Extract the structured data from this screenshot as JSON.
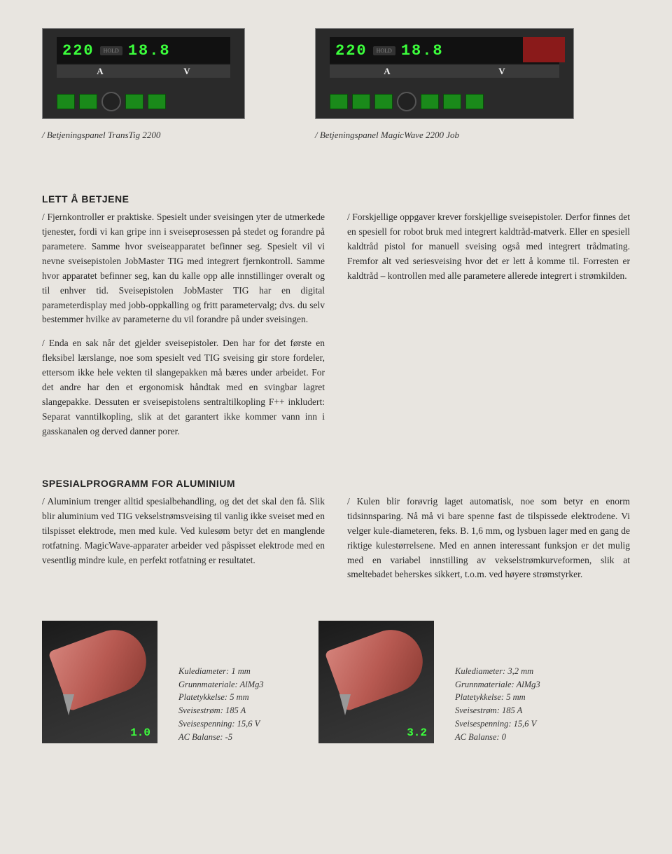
{
  "panels": {
    "left_display_a": "220",
    "left_display_v": "18.8",
    "right_display_a": "220",
    "right_display_v": "18.8",
    "hold_label": "HOLD",
    "a_label": "A",
    "v_label": "V",
    "caption_left": "/ Betjeningspanel TransTig 2200",
    "caption_right": "/ Betjeningspanel MagicWave 2200 Job"
  },
  "section1": {
    "heading": "LETT Å BETJENE",
    "left_p1": "/ Fjernkontroller er praktiske. Spesielt under sveisingen yter de utmerkede tjenester, fordi vi kan gripe inn i sveiseprosessen på stedet og forandre på parametere. Samme hvor sveiseapparatet befinner seg. Spesielt vil vi nevne sveisepistolen JobMaster TIG med integrert fjernkontroll. Samme hvor apparatet befinner seg, kan du kalle opp alle innstillinger overalt og til enhver tid. Sveisepistolen JobMaster TIG har en digital parameterdisplay med jobb-oppkalling og fritt parametervalg; dvs. du selv bestemmer hvilke av parameterne du vil forandre på under sveisingen.",
    "left_p2": "/ Enda en sak når det gjelder sveisepistoler. Den har for det første en fleksibel lærslange, noe som spesielt ved TIG sveising gir store fordeler, ettersom ikke hele vekten til slangepakken må bæres under arbeidet. For det andre har den et ergonomisk håndtak med en svingbar lagret slangepakke. Dessuten er sveisepistolens sentraltilkopling F++ inkludert: Separat vanntilkopling, slik at det garantert ikke kommer vann inn i gasskanalen og derved danner porer.",
    "right_p1": "/ Forskjellige oppgaver krever forskjellige sveisepistoler. Derfor finnes det en spesiell for robot bruk med integrert kaldtråd-matverk. Eller en spesiell kaldtråd pistol for manuell sveising også med integrert trådmating. Fremfor alt ved seriesveising hvor det er lett å komme til. Forresten er kaldtråd – kontrollen med alle parametere allerede integrert i strømkilden."
  },
  "section2": {
    "heading": "SPESIALPROGRAMM FOR ALUMINIUM",
    "left_p1": "/ Aluminium trenger alltid spesialbehandling, og det det skal den få. Slik blir aluminium ved TIG vekselstrømsveising til vanlig ikke sveiset med en tilspisset elektrode, men med kule. Ved kulesøm betyr det en manglende rotfatning. MagicWave-apparater arbeider ved påspisset elektrode med en vesentlig mindre kule, en perfekt rotfatning er resultatet.",
    "right_p1": "/ Kulen blir forøvrig laget automatisk, noe som betyr en enorm tidsinnsparing. Nå må vi bare spenne fast de tilspissede elektrodene. Vi velger kule-diameteren, feks. B. 1,6 mm, og lysbuen lager med en gang de riktige kulestørrelsene. Med en annen interessant funksjon er det mulig med en variabel innstilling av vekselstrømkurveformen, slik at smeltebadet beherskes sikkert, t.o.m. ved høyere strømstyrker."
  },
  "electrodes": {
    "left": {
      "num": "1.0",
      "specs": [
        "Kulediameter: 1 mm",
        "Grunnmateriale: AlMg3",
        "Platetykkelse: 5 mm",
        "Sveisestrøm: 185 A",
        "Sveisespenning: 15,6 V",
        "AC Balanse: -5"
      ]
    },
    "right": {
      "num": "3.2",
      "specs": [
        "Kulediameter: 3,2 mm",
        "Grunnmateriale: AlMg3",
        "Platetykkelse: 5 mm",
        "Sveisestrøm: 185 A",
        "Sveisespenning: 15,6 V",
        "AC Balanse: 0"
      ]
    }
  }
}
